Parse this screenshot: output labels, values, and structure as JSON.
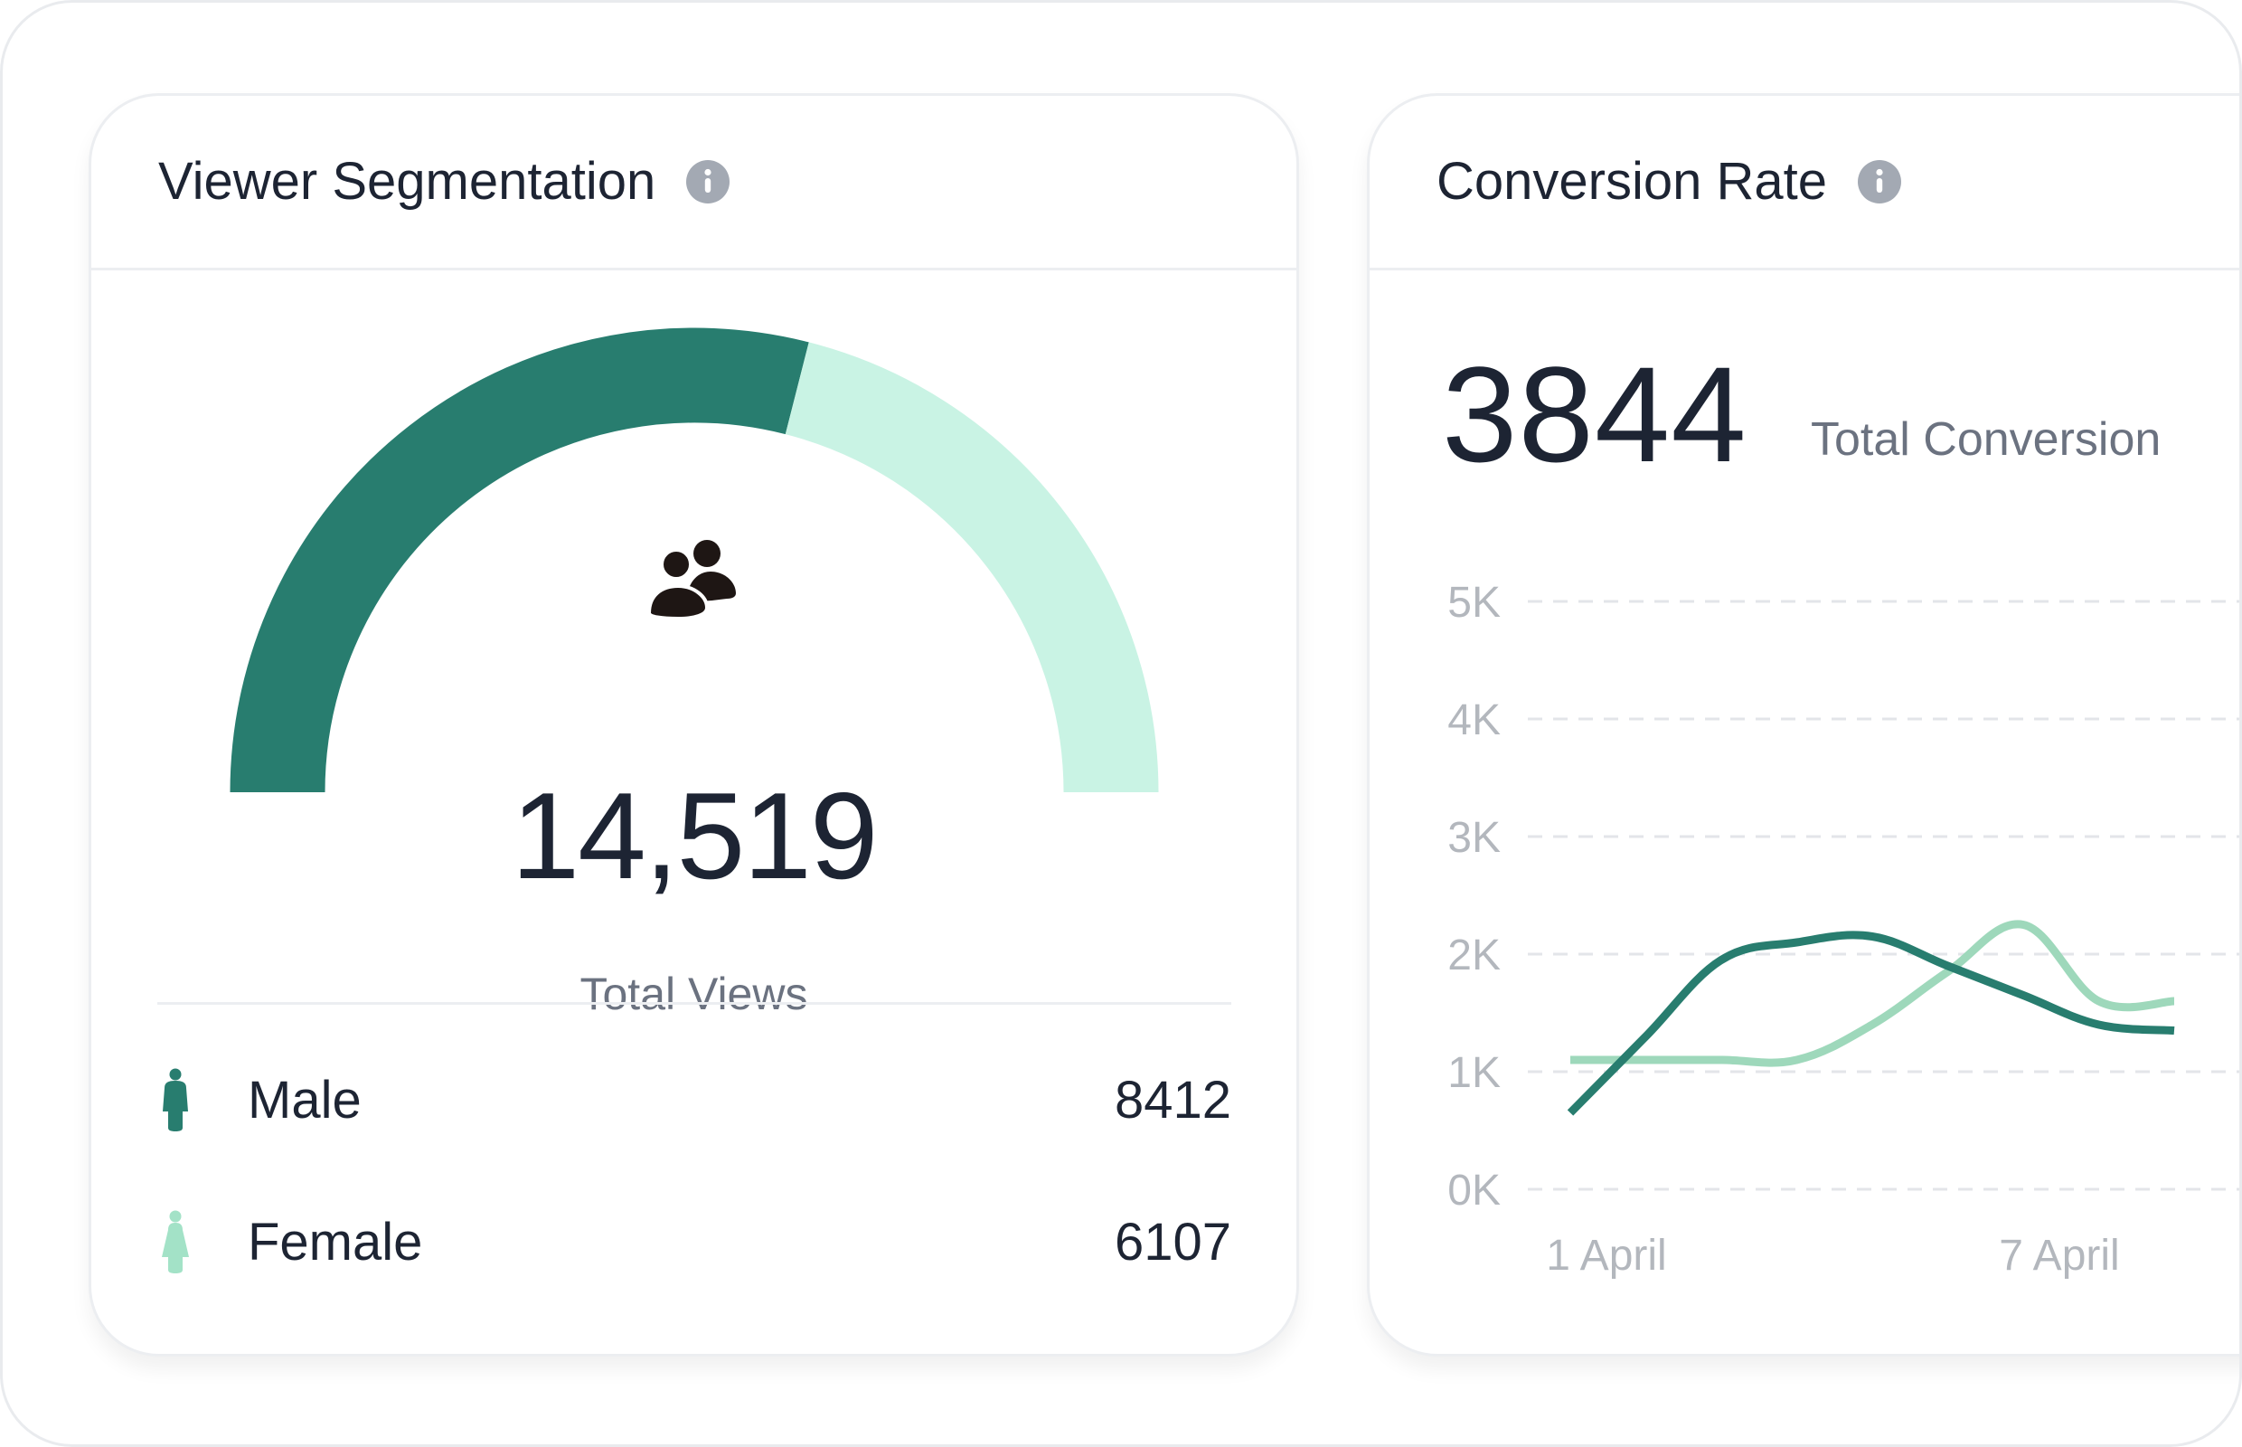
{
  "viewer_segmentation": {
    "title": "Viewer Segmentation",
    "info_icon": "info-icon",
    "users_icon": "users-icon",
    "total_value": "14,519",
    "total_label": "Total Views",
    "segments": [
      {
        "label": "Male",
        "value": "8412",
        "count": 8412,
        "color": "#287d6f",
        "icon": "person-icon"
      },
      {
        "label": "Female",
        "value": "6107",
        "count": 6107,
        "color": "#c9f3e4",
        "icon": "person-icon"
      }
    ]
  },
  "conversion_rate": {
    "title": "Conversion Rate",
    "info_icon": "info-icon",
    "total_value": "3844",
    "total_label": "Total Conversion",
    "colors": {
      "dark": "#287d6f",
      "light": "#9ed8bb",
      "grid": "#e3e5e9",
      "axis_text": "#b3b7bd"
    }
  },
  "chart_data": {
    "type": "line",
    "x": [
      1,
      2,
      3,
      4,
      5,
      6,
      7,
      8,
      9
    ],
    "xticks": [
      {
        "x": 1,
        "label": "1 April"
      },
      {
        "x": 7,
        "label": "7 April"
      }
    ],
    "ylim": [
      0,
      5000
    ],
    "yticks": [
      "0K",
      "1K",
      "2K",
      "3K",
      "4K",
      "5K"
    ],
    "grid": true,
    "series": [
      {
        "color": "#287d6f",
        "values": [
          650,
          1300,
          1950,
          2100,
          2150,
          1900,
          1650,
          1400,
          1350
        ]
      },
      {
        "color": "#9ed8bb",
        "values": [
          1100,
          1100,
          1100,
          1100,
          1400,
          1850,
          2250,
          1600,
          1600
        ]
      }
    ]
  }
}
